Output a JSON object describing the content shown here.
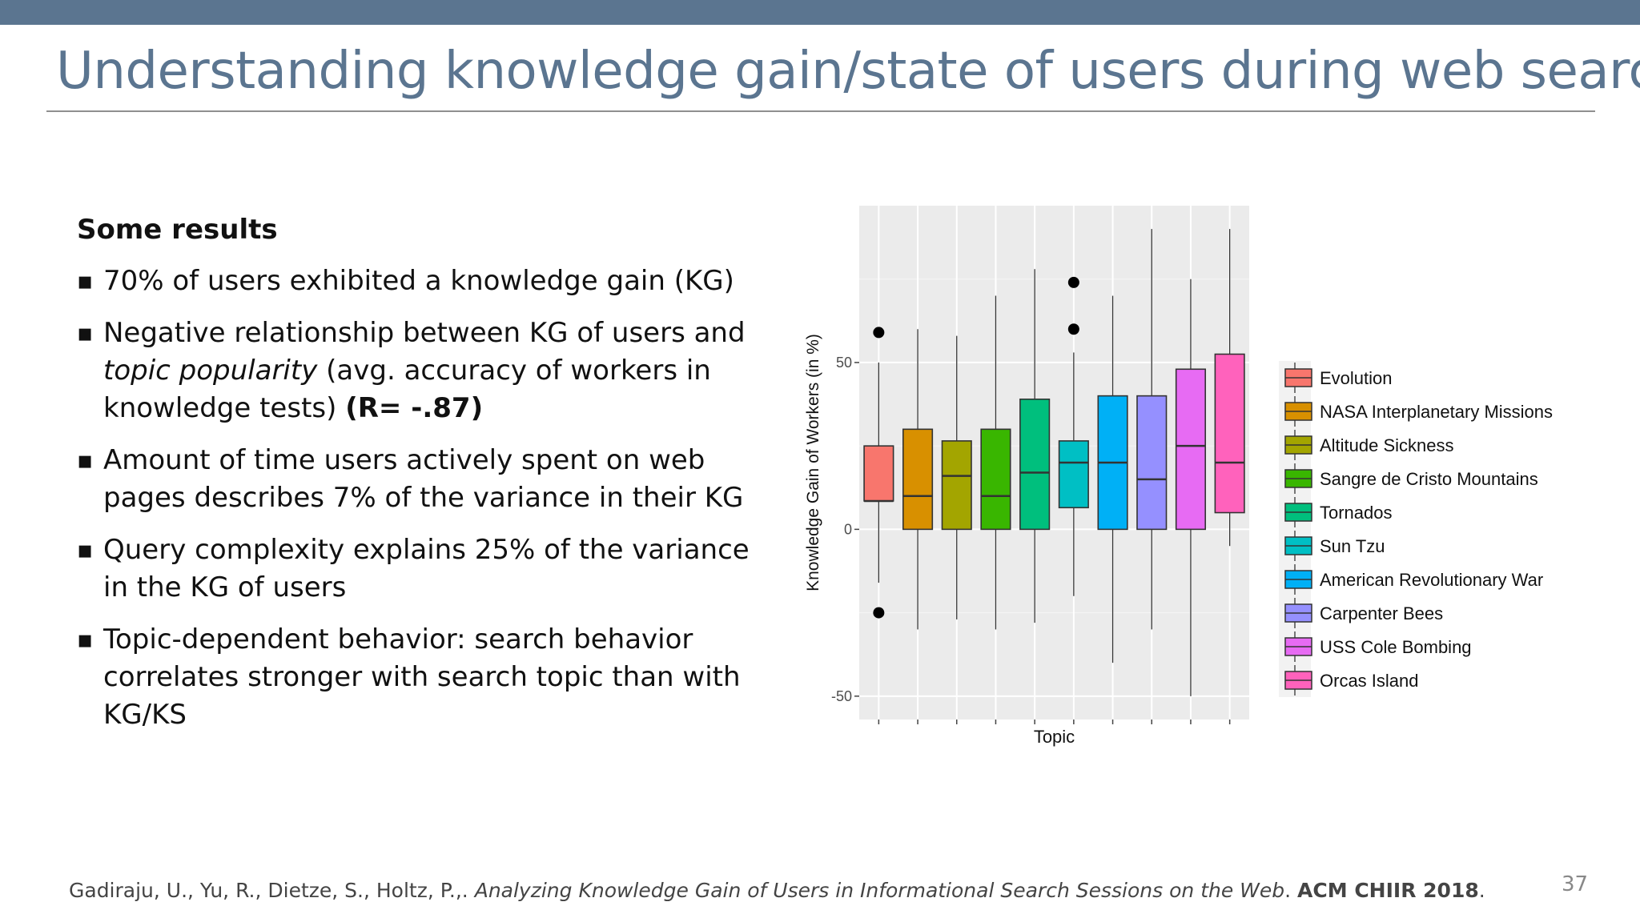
{
  "slide": {
    "title": "Understanding knowledge gain/state of users during web search",
    "heading": "Some results",
    "bullets": [
      {
        "parts": [
          {
            "t": "70% of users exhibited a knowledge gain (KG)"
          }
        ]
      },
      {
        "parts": [
          {
            "t": "Negative relationship between KG of users and "
          },
          {
            "t": "topic popularity",
            "style": "italic"
          },
          {
            "t": " (avg. accuracy of workers in knowledge tests) "
          },
          {
            "t": "(R= -.87)",
            "style": "bold"
          }
        ]
      },
      {
        "parts": [
          {
            "t": "Amount of time users actively spent on web pages describes 7% of the variance in their KG"
          }
        ]
      },
      {
        "parts": [
          {
            "t": "Query complexity explains 25% of the variance in the KG of users"
          }
        ]
      },
      {
        "parts": [
          {
            "t": "Topic-dependent behavior: search behavior correlates stronger with search topic than with KG/KS"
          }
        ]
      }
    ],
    "footer": {
      "authors": "Gadiraju, U., Yu, R., Dietze, S., Holtz, P.,.",
      "paper": "Analyzing Knowledge Gain of Users in Informational Search Sessions on the Web",
      "venue": "ACM CHIIR 2018"
    },
    "page_number": "37"
  },
  "chart_data": {
    "type": "box",
    "xlabel": "Topic",
    "ylabel": "Knowledge Gain of Workers (in %)",
    "ylim": [
      -57,
      97
    ],
    "yticks": [
      -50,
      0,
      50
    ],
    "ytick_labels": [
      "-50",
      "0",
      "50"
    ],
    "grid": true,
    "legend_position": "right",
    "series": [
      {
        "name": "Evolution",
        "color": "#f8766d",
        "whisker_low": -16,
        "q1": 8.5,
        "median": 8.5,
        "q3": 25,
        "whisker_high": 50,
        "outliers": [
          59,
          -25
        ]
      },
      {
        "name": "NASA Interplanetary Missions",
        "color": "#d89000",
        "whisker_low": -30,
        "q1": 0,
        "median": 10,
        "q3": 30,
        "whisker_high": 60,
        "outliers": []
      },
      {
        "name": "Altitude Sickness",
        "color": "#a3a500",
        "whisker_low": -27,
        "q1": 0,
        "median": 16,
        "q3": 26.5,
        "whisker_high": 58,
        "outliers": []
      },
      {
        "name": "Sangre de Cristo Mountains",
        "color": "#39b600",
        "whisker_low": -30,
        "q1": 0,
        "median": 10,
        "q3": 30,
        "whisker_high": 70,
        "outliers": []
      },
      {
        "name": "Tornados",
        "color": "#00bf7d",
        "whisker_low": -28,
        "q1": 0,
        "median": 17,
        "q3": 39,
        "whisker_high": 78,
        "outliers": []
      },
      {
        "name": "Sun Tzu",
        "color": "#00bfc4",
        "whisker_low": -20,
        "q1": 6.5,
        "median": 20,
        "q3": 26.5,
        "whisker_high": 53,
        "outliers": [
          74,
          60
        ]
      },
      {
        "name": "American Revolutionary War",
        "color": "#00b0f6",
        "whisker_low": -40,
        "q1": 0,
        "median": 20,
        "q3": 40,
        "whisker_high": 70,
        "outliers": []
      },
      {
        "name": "Carpenter Bees",
        "color": "#9590ff",
        "whisker_low": -30,
        "q1": 0,
        "median": 15,
        "q3": 40,
        "whisker_high": 90,
        "outliers": []
      },
      {
        "name": "USS Cole Bombing",
        "color": "#e76bf3",
        "whisker_low": -50,
        "q1": 0,
        "median": 25,
        "q3": 48,
        "whisker_high": 75,
        "outliers": []
      },
      {
        "name": "Orcas Island",
        "color": "#ff62bc",
        "whisker_low": -5,
        "q1": 5,
        "median": 20,
        "q3": 52.5,
        "whisker_high": 90,
        "outliers": []
      }
    ]
  }
}
